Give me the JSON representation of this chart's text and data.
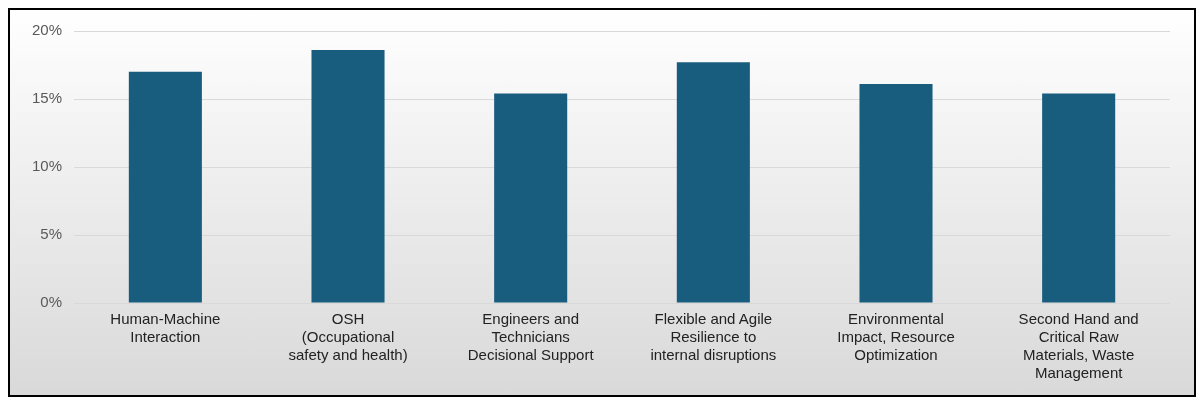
{
  "chart_data": {
    "type": "bar",
    "categories": [
      "Human-Machine Interaction",
      "OSH (Occupational safety and health)",
      "Engineers and Technicians Decisional Support",
      "Flexible and Agile Resilience to internal disruptions",
      "Environmental Impact, Resource Optimization",
      "Second Hand and Critical Raw Materials, Waste Management"
    ],
    "values": [
      17.0,
      18.6,
      15.4,
      17.7,
      16.1,
      15.4
    ],
    "color": "#195d7e",
    "ylim": [
      0,
      20
    ],
    "yticks": [
      {
        "value": 0,
        "label": "0%"
      },
      {
        "value": 5,
        "label": "5%"
      },
      {
        "value": 10,
        "label": "10%"
      },
      {
        "value": 15,
        "label": "15%"
      },
      {
        "value": 20,
        "label": "20%"
      }
    ],
    "grid": "y",
    "legend": false
  }
}
